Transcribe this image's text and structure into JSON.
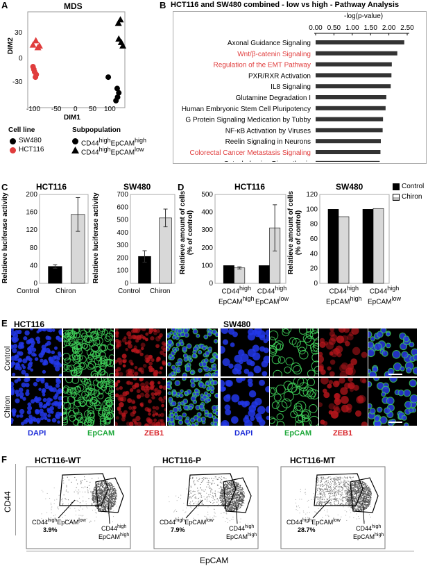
{
  "panels": {
    "A": "A",
    "B": "B",
    "C": "C",
    "D": "D",
    "E": "E",
    "F": "F"
  },
  "panelA": {
    "title": "MDS",
    "xlabel": "DIM1",
    "ylabel": "DIM2",
    "xticks": [
      "-100",
      "-50",
      "0",
      "50",
      "100"
    ],
    "yticks": [
      "30",
      "0",
      "-30"
    ],
    "legend": {
      "cellline_title": "Cell line",
      "sw480": "SW480",
      "hct116": "HCT116",
      "subpop_title": "Subpopulation",
      "sub1_pre": "CD44",
      "sub1_sup1": "high",
      "sub1_mid": "EpCAM",
      "sub1_sup2": "high",
      "sub2_pre": "CD44",
      "sub2_sup1": "high",
      "sub2_mid": "EpCAM",
      "sub2_sup2": "low"
    },
    "colors": {
      "sw480": "#000000",
      "hct116": "#e03c3c"
    }
  },
  "chart_data": [
    {
      "type": "scatter",
      "title": "MDS",
      "xlabel": "DIM1",
      "ylabel": "DIM2",
      "xlim": [
        -125,
        115
      ],
      "ylim": [
        -50,
        60
      ],
      "series": [
        {
          "name": "HCT116 CD44highEpCAMlow",
          "color": "#e03c3c",
          "marker": "triangle",
          "points": [
            [
              -112,
              22
            ],
            [
              -105,
              27
            ],
            [
              -100,
              19
            ],
            [
              -96,
              21
            ]
          ]
        },
        {
          "name": "HCT116 CD44highEpCAMhigh",
          "color": "#e03c3c",
          "marker": "circle",
          "points": [
            [
              -112,
              -3
            ],
            [
              -108,
              -9
            ],
            [
              -106,
              -15
            ],
            [
              -104,
              -12
            ],
            [
              -110,
              -6
            ]
          ]
        },
        {
          "name": "SW480 CD44highEpCAMlow",
          "color": "#000000",
          "marker": "triangle",
          "points": [
            [
              99,
              47
            ],
            [
              104,
              51
            ],
            [
              100,
              29
            ],
            [
              106,
              25
            ],
            [
              110,
              21
            ]
          ]
        },
        {
          "name": "SW480 CD44highEpCAMhigh",
          "color": "#000000",
          "marker": "circle",
          "points": [
            [
              74,
              -15
            ],
            [
              96,
              -28
            ],
            [
              100,
              -33
            ],
            [
              97,
              -38
            ],
            [
              93,
              -42
            ]
          ]
        }
      ]
    },
    {
      "type": "bar",
      "title": "HCT116 and SW480 combined - low vs high - Pathway Analysis",
      "xlabel": "-log(p-value)",
      "orientation": "horizontal",
      "xlim": [
        0,
        2.5
      ],
      "ticks": [
        "0.00",
        "0.50",
        "1.00",
        "1.50",
        "2.00",
        "2.50"
      ],
      "categories": [
        "Axonal Guidance Signaling",
        "Wnt/β-catenin Signaling",
        "Regulation of the EMT Pathway",
        "PXR/RXR Activation",
        "IL8 Signaling",
        "Glutamine Degradation I",
        "Human Embryonic Stem Cell Pluripotency",
        "G Protein Signaling Medication by Tubby",
        "NF-κB Activation by Viruses",
        "Reelin Signaling in Neurons",
        "Colorectal Cancer Metastasis Signaling",
        "Catecholamine Biosynthesis"
      ],
      "highlighted": [
        false,
        true,
        true,
        false,
        false,
        false,
        false,
        false,
        false,
        false,
        true,
        false
      ],
      "values": [
        2.42,
        2.23,
        2.08,
        2.07,
        2.05,
        1.93,
        1.91,
        1.84,
        1.83,
        1.78,
        1.77,
        1.75
      ]
    },
    {
      "type": "bar",
      "title": "HCT116",
      "ylabel": "Relatieve luciferase activity",
      "categories": [
        "Control",
        "Chiron"
      ],
      "values": [
        38,
        155
      ],
      "errors": [
        4,
        38
      ],
      "ylim": [
        0,
        200
      ],
      "yticks": [
        "0",
        "40",
        "80",
        "120",
        "160",
        "200"
      ]
    },
    {
      "type": "bar",
      "title": "SW480",
      "ylabel": "Relatieve luciferase activity",
      "categories": [
        "Control",
        "Chiron"
      ],
      "values": [
        212,
        515
      ],
      "errors": [
        45,
        70
      ],
      "ylim": [
        0,
        700
      ],
      "yticks": [
        "0",
        "100",
        "200",
        "300",
        "400",
        "500",
        "600",
        "700"
      ]
    },
    {
      "type": "bar",
      "title": "HCT116",
      "ylabel": "Relatieve amount of cells (% of control)",
      "categories": [
        "CD44highEpCAMhigh",
        "CD44highEpCAMlow"
      ],
      "series": [
        {
          "name": "Control",
          "values": [
            100,
            100
          ],
          "errors": [
            0,
            0
          ]
        },
        {
          "name": "Chiron",
          "values": [
            87,
            312
          ],
          "errors": [
            6,
            130
          ]
        }
      ],
      "ylim": [
        0,
        500
      ],
      "yticks": [
        "0",
        "100",
        "200",
        "300",
        "400",
        "500"
      ]
    },
    {
      "type": "bar",
      "title": "SW480",
      "ylabel": "Relatieve amount of cells (% of control)",
      "categories": [
        "CD44highEpCAMhigh",
        "CD44highEpCAMlow"
      ],
      "series": [
        {
          "name": "Control",
          "values": [
            100,
            100
          ],
          "errors": [
            0,
            0
          ]
        },
        {
          "name": "Chiron",
          "values": [
            90,
            101
          ],
          "errors": [
            0,
            0
          ]
        }
      ],
      "ylim": [
        0,
        120
      ],
      "yticks": [
        "0",
        "20",
        "40",
        "60",
        "80",
        "100",
        "120"
      ]
    }
  ],
  "panelC": {
    "hct_title": "HCT116",
    "sw_title": "SW480",
    "ylabel": "Relatieve luciferase activity",
    "cat1": "Control",
    "cat2": "Chiron"
  },
  "panelD": {
    "hct_title": "HCT116",
    "sw_title": "SW480",
    "ylabel1": "Relatieve amount of cells",
    "ylabel2": "(% of control)",
    "legend_control": "Control",
    "legend_chiron": "Chiron",
    "cat_pre": "CD44",
    "cat_sup": "high",
    "cat1_line2": "EpCAM",
    "cat1_sup2": "high",
    "cat2_line2": "EpCAM",
    "cat2_sup2": "low"
  },
  "panelE": {
    "hct_title": "HCT116",
    "sw_title": "SW480",
    "row_control": "Control",
    "row_chiron": "Chiron",
    "dapi": "DAPI",
    "epcam": "EpCAM",
    "zeb1": "ZEB1",
    "colors": {
      "dapi": "#1a2ad8",
      "epcam": "#1ea83a",
      "zeb1": "#d8242a"
    }
  },
  "panelF": {
    "titles": [
      "HCT116-WT",
      "HCT116-P",
      "HCT116-MT"
    ],
    "ylabel": "CD44",
    "xlabel": "EpCAM",
    "low_pre": "CD44",
    "low_sup1": "high",
    "low_mid": "EpCAM",
    "low_sup2": "low",
    "high_line1": "CD44",
    "high_sup1": "high",
    "high_line2": "EpCAM",
    "high_sup2": "high",
    "percents": [
      "3.9%",
      "7.9%",
      "28.7%"
    ]
  }
}
